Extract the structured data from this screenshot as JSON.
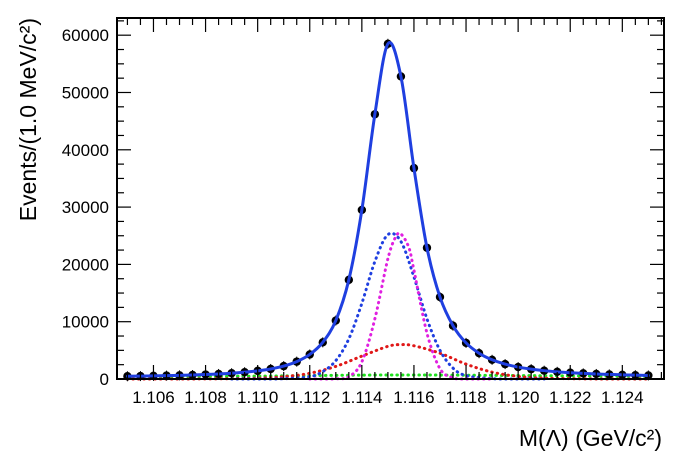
{
  "chart_data": {
    "type": "scatter",
    "title": "",
    "xlabel": "M(Λ) (GeV/c²)",
    "ylabel": "Events/(1.0 MeV/c²)",
    "xlim": [
      1.1046,
      1.1256
    ],
    "ylim": [
      0,
      63000
    ],
    "x_ticks": [
      1.106,
      1.108,
      1.11,
      1.112,
      1.114,
      1.116,
      1.118,
      1.12,
      1.122,
      1.124
    ],
    "x_tick_labels": [
      "1.106",
      "1.108",
      "1.110",
      "1.112",
      "1.114",
      "1.116",
      "1.118",
      "1.120",
      "1.122",
      "1.124"
    ],
    "y_ticks": [
      0,
      10000,
      20000,
      30000,
      40000,
      50000,
      60000
    ],
    "y_tick_labels": [
      "0",
      "10000",
      "20000",
      "30000",
      "40000",
      "50000",
      "60000"
    ],
    "grid": false,
    "legend": "none",
    "series": [
      {
        "role": "data",
        "style": "points",
        "color": "#000000",
        "x": [
          1.105,
          1.1055,
          1.106,
          1.1065,
          1.107,
          1.1075,
          1.108,
          1.1085,
          1.109,
          1.1095,
          1.11,
          1.1105,
          1.111,
          1.1115,
          1.112,
          1.1125,
          1.113,
          1.1135,
          1.114,
          1.1145,
          1.115,
          1.1155,
          1.116,
          1.1165,
          1.117,
          1.1175,
          1.118,
          1.1185,
          1.119,
          1.1195,
          1.12,
          1.1205,
          1.121,
          1.1215,
          1.122,
          1.1225,
          1.123,
          1.1235,
          1.124,
          1.1245,
          1.125
        ],
        "values": [
          480,
          510,
          545,
          590,
          640,
          700,
          780,
          880,
          1010,
          1190,
          1420,
          1750,
          2250,
          3030,
          4280,
          6400,
          10200,
          17300,
          29500,
          46200,
          58500,
          52800,
          36800,
          22900,
          14300,
          9300,
          6300,
          4500,
          3350,
          2600,
          2080,
          1720,
          1450,
          1250,
          1100,
          980,
          880,
          800,
          730,
          670,
          620
        ]
      },
      {
        "role": "total-fit",
        "style": "solid",
        "color": "#1f3fe0",
        "x": [
          1.105,
          1.1055,
          1.106,
          1.1065,
          1.107,
          1.1075,
          1.108,
          1.1085,
          1.109,
          1.1095,
          1.11,
          1.1105,
          1.111,
          1.1115,
          1.112,
          1.1125,
          1.113,
          1.1135,
          1.114,
          1.1145,
          1.115,
          1.1155,
          1.116,
          1.1165,
          1.117,
          1.1175,
          1.118,
          1.1185,
          1.119,
          1.1195,
          1.12,
          1.1205,
          1.121,
          1.1215,
          1.122,
          1.1225,
          1.123,
          1.1235,
          1.124,
          1.1245,
          1.125
        ],
        "values": [
          480,
          510,
          545,
          590,
          640,
          700,
          780,
          880,
          1010,
          1190,
          1420,
          1750,
          2250,
          3030,
          4280,
          6400,
          10200,
          17300,
          29500,
          46200,
          58500,
          52800,
          36800,
          22900,
          14300,
          9300,
          6300,
          4500,
          3350,
          2600,
          2080,
          1720,
          1450,
          1250,
          1100,
          980,
          880,
          800,
          730,
          670,
          620
        ]
      },
      {
        "role": "signal-component-1",
        "style": "dotted",
        "color": "#1f3fe0",
        "x": [
          1.109,
          1.11,
          1.111,
          1.112,
          1.1125,
          1.113,
          1.1135,
          1.114,
          1.1145,
          1.115,
          1.1155,
          1.116,
          1.1165,
          1.117,
          1.1175,
          1.118,
          1.119,
          1.12,
          1.121
        ],
        "values": [
          0,
          0,
          50,
          400,
          1300,
          3200,
          7000,
          13200,
          20500,
          25200,
          24000,
          17800,
          10500,
          5000,
          1900,
          600,
          60,
          0,
          0
        ]
      },
      {
        "role": "signal-component-2",
        "style": "dotted",
        "color": "#e020e0",
        "x": [
          1.112,
          1.113,
          1.1135,
          1.114,
          1.1145,
          1.115,
          1.1153,
          1.1155,
          1.1158,
          1.116,
          1.1165,
          1.117,
          1.1175,
          1.118,
          1.119
        ],
        "values": [
          0,
          30,
          400,
          3000,
          10500,
          21000,
          24800,
          25300,
          23000,
          19000,
          8000,
          1800,
          200,
          10,
          0
        ]
      },
      {
        "role": "signal-component-3",
        "style": "dotted",
        "color": "#e01818",
        "x": [
          1.105,
          1.108,
          1.11,
          1.111,
          1.112,
          1.113,
          1.114,
          1.115,
          1.1155,
          1.116,
          1.117,
          1.118,
          1.119,
          1.12,
          1.121,
          1.123,
          1.125
        ],
        "values": [
          0,
          20,
          150,
          400,
          1000,
          2200,
          4000,
          5700,
          6000,
          5800,
          4500,
          2600,
          1200,
          450,
          150,
          10,
          0
        ]
      },
      {
        "role": "background",
        "style": "dotted",
        "color": "#1fe01f",
        "x": [
          1.105,
          1.11,
          1.115,
          1.12,
          1.125
        ],
        "values": [
          350,
          500,
          700,
          600,
          450
        ]
      }
    ]
  }
}
